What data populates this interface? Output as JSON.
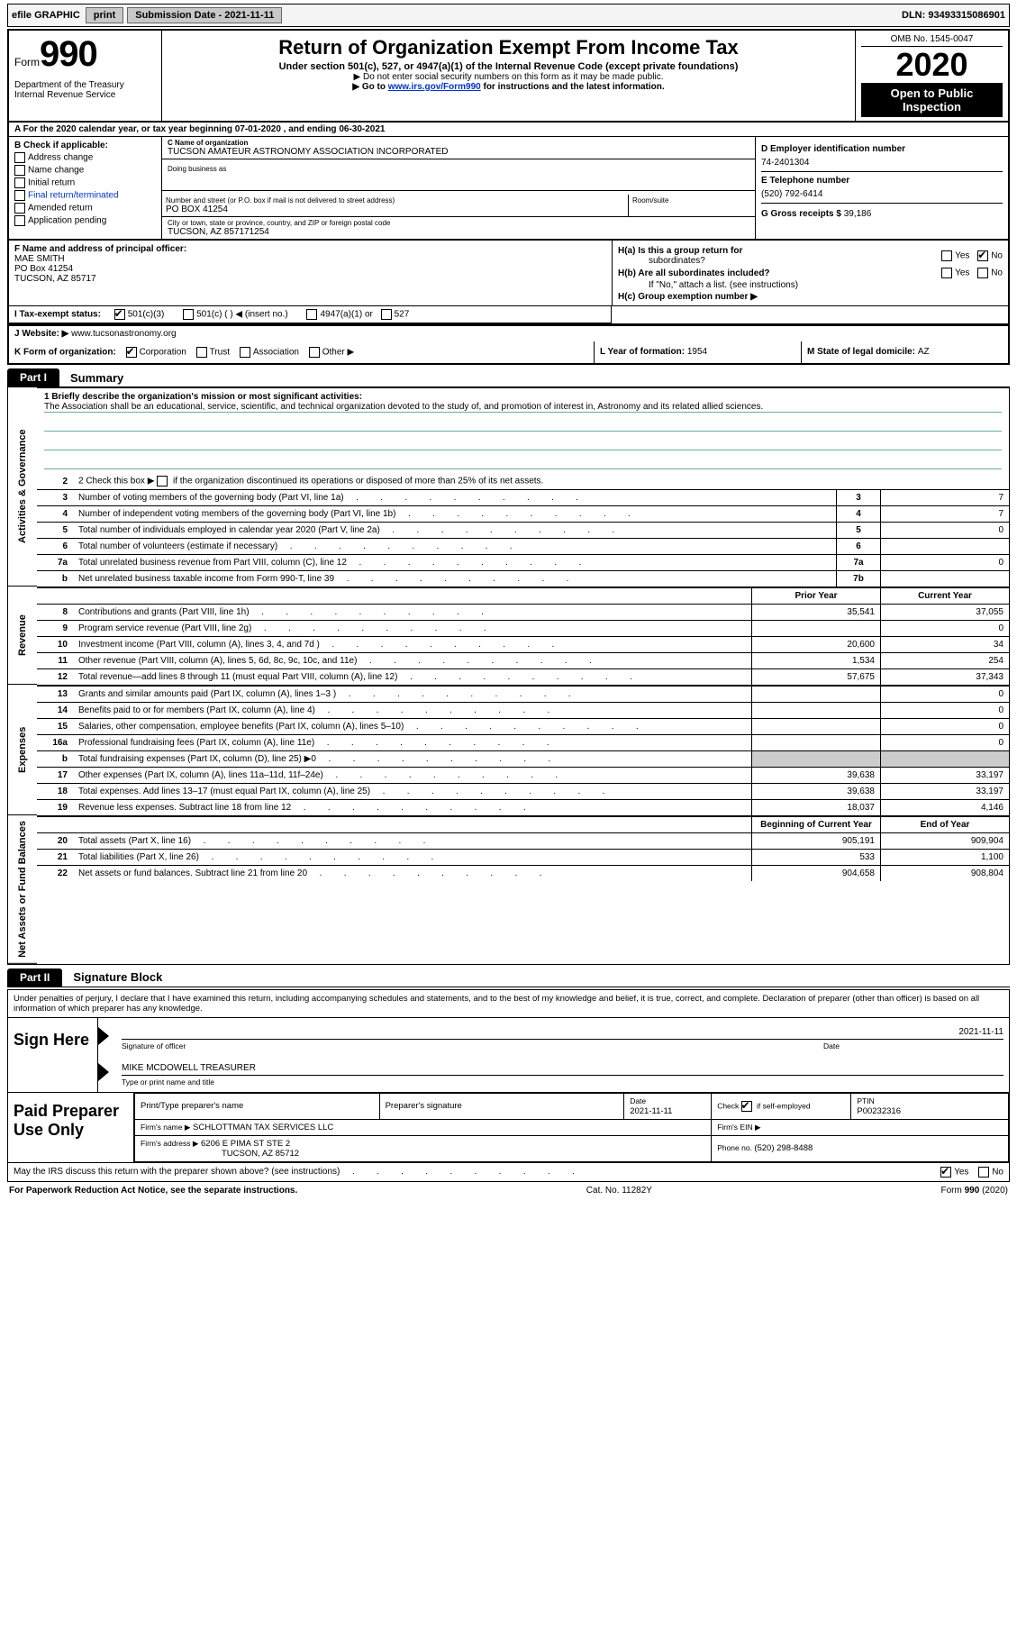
{
  "topbar": {
    "efile": "efile GRAPHIC",
    "print": "print",
    "sub_label": "Submission Date - 2021-11-11",
    "dln_label": "DLN: 93493315086901"
  },
  "header": {
    "form": "Form",
    "num": "990",
    "dept1": "Department of the Treasury",
    "dept2": "Internal Revenue Service",
    "title": "Return of Organization Exempt From Income Tax",
    "subtitle": "Under section 501(c), 527, or 4947(a)(1) of the Internal Revenue Code (except private foundations)",
    "instr1": "Do not enter social security numbers on this form as it may be made public.",
    "instr2a": "Go to ",
    "instr2_link": "www.irs.gov/Form990",
    "instr2b": " for instructions and the latest information.",
    "omb": "OMB No. 1545-0047",
    "year": "2020",
    "open": "Open to Public Inspection"
  },
  "rowA": "A   For the 2020 calendar year, or tax year beginning 07-01-2020    , and ending 06-30-2021",
  "colB": {
    "hdr": "B Check if applicable:",
    "i1": "Address change",
    "i2": "Name change",
    "i3": "Initial return",
    "i4": "Final return/terminated",
    "i5": "Amended return",
    "i6": "Application pending"
  },
  "colC": {
    "c_name_hdr": "C Name of organization",
    "c_name": "TUCSON AMATEUR ASTRONOMY ASSOCIATION INCORPORATED",
    "dba_hdr": "Doing business as",
    "dba": "",
    "street_hdr": "Number and street (or P.O. box if mail is not delivered to street address)",
    "room_hdr": "Room/suite",
    "street": "PO BOX 41254",
    "city_hdr": "City or town, state or province, country, and ZIP or foreign postal code",
    "city": "TUCSON, AZ  857171254"
  },
  "colD": {
    "d_hdr": "D Employer identification number",
    "ein": "74-2401304",
    "e_hdr": "E Telephone number",
    "phone": "(520) 792-6414",
    "g_hdr": "G Gross receipts $ ",
    "g_val": "39,186"
  },
  "F": {
    "hdr": "F Name and address of principal officer:",
    "l1": "MAE SMITH",
    "l2": "PO Box 41254",
    "l3": "TUCSON, AZ  85717"
  },
  "H": {
    "a1": "H(a)  Is this a group return for",
    "a2": "subordinates?",
    "b1": "H(b)  Are all subordinates included?",
    "b2": "If \"No,\" attach a list. (see instructions)",
    "c": "H(c)  Group exemption number ▶",
    "yes": "Yes",
    "no": "No"
  },
  "I": {
    "label": "I    Tax-exempt status:",
    "o1": "501(c)(3)",
    "o2": "501(c) (  ) ◀ (insert no.)",
    "o3": "4947(a)(1) or",
    "o4": "527"
  },
  "J": {
    "label": "J    Website: ▶",
    "val": "www.tucsonastronomy.org"
  },
  "K": {
    "label": "K Form of organization:",
    "o1": "Corporation",
    "o2": "Trust",
    "o3": "Association",
    "o4": "Other ▶"
  },
  "L": {
    "label": "L Year of formation: ",
    "val": "1954"
  },
  "M": {
    "label": "M State of legal domicile: ",
    "val": "AZ"
  },
  "partI": {
    "tab": "Part I",
    "title": "Summary",
    "q1": "1 Briefly describe the organization's mission or most significant activities:",
    "mission": "The Association shall be an educational, service, scientific, and technical organization devoted to the study of, and promotion of interest in, Astronomy and its related allied sciences.",
    "q2a": "2   Check this box ▶",
    "q2b": "if the organization discontinued its operations or disposed of more than 25% of its net assets.",
    "lines_gov": [
      {
        "n": "3",
        "d": "Number of voting members of the governing body (Part VI, line 1a)",
        "box": "3",
        "val": "7"
      },
      {
        "n": "4",
        "d": "Number of independent voting members of the governing body (Part VI, line 1b)",
        "box": "4",
        "val": "7"
      },
      {
        "n": "5",
        "d": "Total number of individuals employed in calendar year 2020 (Part V, line 2a)",
        "box": "5",
        "val": "0"
      },
      {
        "n": "6",
        "d": "Total number of volunteers (estimate if necessary)",
        "box": "6",
        "val": ""
      },
      {
        "n": "7a",
        "d": "Total unrelated business revenue from Part VIII, column (C), line 12",
        "box": "7a",
        "val": "0"
      },
      {
        "n": "b",
        "d": "Net unrelated business taxable income from Form 990-T, line 39",
        "box": "7b",
        "val": ""
      }
    ],
    "hdr_prior": "Prior Year",
    "hdr_cur": "Current Year",
    "rev": [
      {
        "n": "8",
        "d": "Contributions and grants (Part VIII, line 1h)",
        "p": "35,541",
        "c": "37,055"
      },
      {
        "n": "9",
        "d": "Program service revenue (Part VIII, line 2g)",
        "p": "",
        "c": "0"
      },
      {
        "n": "10",
        "d": "Investment income (Part VIII, column (A), lines 3, 4, and 7d )",
        "p": "20,600",
        "c": "34"
      },
      {
        "n": "11",
        "d": "Other revenue (Part VIII, column (A), lines 5, 6d, 8c, 9c, 10c, and 11e)",
        "p": "1,534",
        "c": "254"
      },
      {
        "n": "12",
        "d": "Total revenue—add lines 8 through 11 (must equal Part VIII, column (A), line 12)",
        "p": "57,675",
        "c": "37,343"
      }
    ],
    "exp": [
      {
        "n": "13",
        "d": "Grants and similar amounts paid (Part IX, column (A), lines 1–3 )",
        "p": "",
        "c": "0"
      },
      {
        "n": "14",
        "d": "Benefits paid to or for members (Part IX, column (A), line 4)",
        "p": "",
        "c": "0"
      },
      {
        "n": "15",
        "d": "Salaries, other compensation, employee benefits (Part IX, column (A), lines 5–10)",
        "p": "",
        "c": "0"
      },
      {
        "n": "16a",
        "d": "Professional fundraising fees (Part IX, column (A), line 11e)",
        "p": "",
        "c": "0"
      },
      {
        "n": "b",
        "d": "Total fundraising expenses (Part IX, column (D), line 25) ▶0",
        "p": "shade",
        "c": "shade"
      },
      {
        "n": "17",
        "d": "Other expenses (Part IX, column (A), lines 11a–11d, 11f–24e)",
        "p": "39,638",
        "c": "33,197"
      },
      {
        "n": "18",
        "d": "Total expenses. Add lines 13–17 (must equal Part IX, column (A), line 25)",
        "p": "39,638",
        "c": "33,197"
      },
      {
        "n": "19",
        "d": "Revenue less expenses. Subtract line 18 from line 12",
        "p": "18,037",
        "c": "4,146"
      }
    ],
    "hdr_beg": "Beginning of Current Year",
    "hdr_end": "End of Year",
    "net": [
      {
        "n": "20",
        "d": "Total assets (Part X, line 16)",
        "p": "905,191",
        "c": "909,904"
      },
      {
        "n": "21",
        "d": "Total liabilities (Part X, line 26)",
        "p": "533",
        "c": "1,100"
      },
      {
        "n": "22",
        "d": "Net assets or fund balances. Subtract line 21 from line 20",
        "p": "904,658",
        "c": "908,804"
      }
    ]
  },
  "partII": {
    "tab": "Part II",
    "title": "Signature Block",
    "perjury": "Under penalties of perjury, I declare that I have examined this return, including accompanying schedules and statements, and to the best of my knowledge and belief, it is true, correct, and complete. Declaration of preparer (other than officer) is based on all information of which preparer has any knowledge.",
    "sign_here": "Sign Here",
    "date": "2021-11-11",
    "sig_of": "Signature of officer",
    "date_lbl": "Date",
    "officer": "MIKE MCDOWELL  TREASURER",
    "type_lbl": "Type or print name and title",
    "paid": "Paid Preparer Use Only",
    "pt_name_hdr": "Print/Type preparer's name",
    "pt_sig_hdr": "Preparer's signature",
    "pt_date_hdr": "Date",
    "pt_date": "2021-11-11",
    "pt_chk_hdr": "Check         if self-employed",
    "ptin_hdr": "PTIN",
    "ptin": "P00232316",
    "firm_name_hdr": "Firm's name   ▶",
    "firm_name": "SCHLOTTMAN TAX SERVICES LLC",
    "firm_ein_hdr": "Firm's EIN ▶",
    "firm_addr_hdr": "Firm's address ▶",
    "firm_addr1": "6206 E PIMA ST STE 2",
    "firm_addr2": "TUCSON, AZ  85712",
    "firm_phone_hdr": "Phone no. ",
    "firm_phone": "(520) 298-8488",
    "discuss": "May the IRS discuss this return with the preparer shown above? (see instructions)"
  },
  "footer": {
    "l": "For Paperwork Reduction Act Notice, see the separate instructions.",
    "m": "Cat. No. 11282Y",
    "r": "Form 990 (2020)"
  },
  "vlabels": {
    "gov": "Activities & Governance",
    "rev": "Revenue",
    "exp": "Expenses",
    "net": "Net Assets or Fund Balances"
  }
}
